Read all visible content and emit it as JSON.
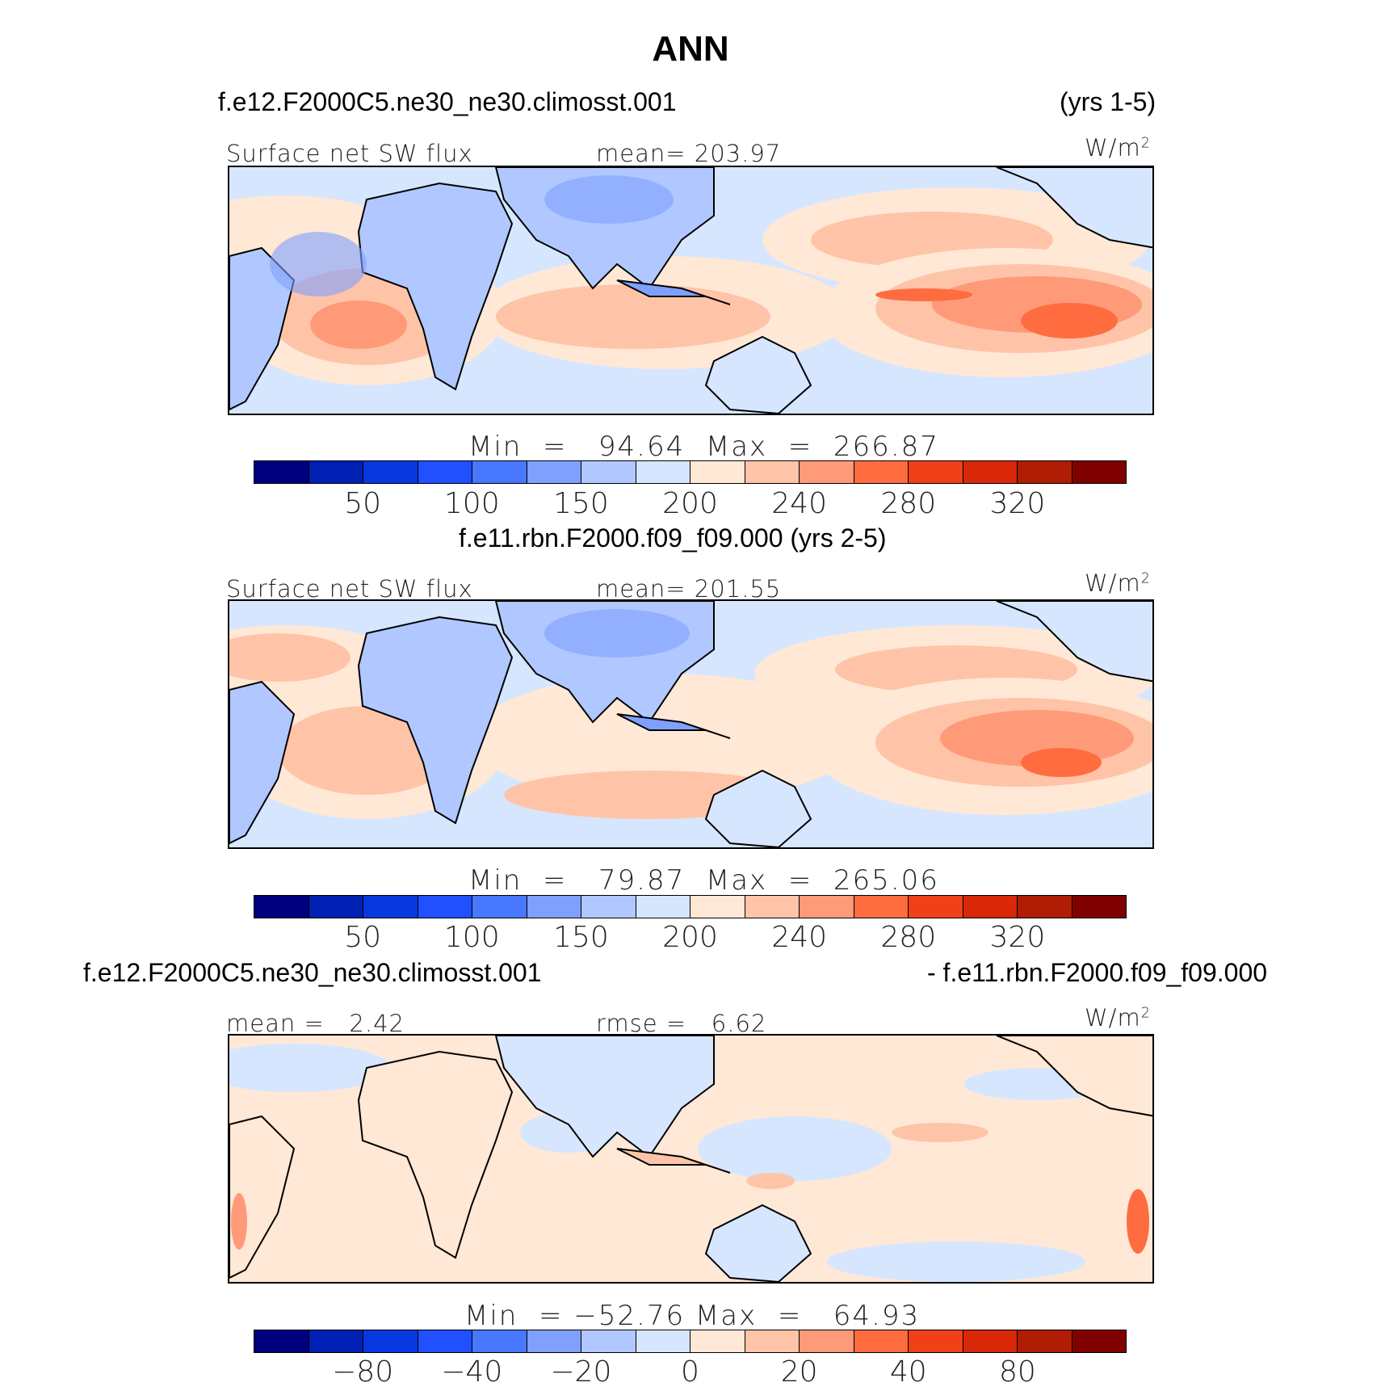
{
  "title": "ANN",
  "colors": {
    "palette": [
      "#00007f",
      "#0020b4",
      "#0838e0",
      "#2050ff",
      "#4878ff",
      "#7fa0ff",
      "#b0c8ff",
      "#d6e6ff",
      "#ffe8d6",
      "#ffc4a8",
      "#ff9a78",
      "#ff6c40",
      "#f04018",
      "#d82808",
      "#b01c04",
      "#800000"
    ],
    "ocean_base": "#ffe8d6",
    "land": "#c8dcff",
    "coast": "#000000"
  },
  "panel1": {
    "case_name": "f.e12.F2000C5.ne30_ne30.climosst.001",
    "years": "(yrs 1-5)",
    "variable": "Surface net SW flux",
    "mean_text": "mean= 203.97",
    "units": "W/m",
    "units_exp": "2",
    "min_label": "Min",
    "min_eq": "=",
    "min_value": "94.64",
    "max_label": "Max",
    "max_eq": "=",
    "max_value": "266.87",
    "ticks": [
      "50",
      "100",
      "150",
      "200",
      "240",
      "280",
      "320"
    ]
  },
  "panel2": {
    "case_name": "f.e11.rbn.F2000.f09_f09.000 (yrs 2-5)",
    "variable": "Surface net SW flux",
    "mean_text": "mean= 201.55",
    "units": "W/m",
    "units_exp": "2",
    "min_label": "Min",
    "min_eq": "=",
    "min_value": "79.87",
    "max_label": "Max",
    "max_eq": "=",
    "max_value": "265.06",
    "ticks": [
      "50",
      "100",
      "150",
      "200",
      "240",
      "280",
      "320"
    ]
  },
  "panel3": {
    "case_left": "f.e12.F2000C5.ne30_ne30.climosst.001",
    "case_right": "- f.e11.rbn.F2000.f09_f09.000",
    "mean_label": "mean =",
    "mean_value": "2.42",
    "rmse_label": "rmse =",
    "rmse_value": "6.62",
    "units": "W/m",
    "units_exp": "2",
    "min_label": "Min",
    "min_eq": "=",
    "min_value": "−52.76",
    "max_label": "Max",
    "max_eq": "=",
    "max_value": "64.93",
    "ticks": [
      "−80",
      "−40",
      "−20",
      "0",
      "20",
      "40",
      "80"
    ]
  }
}
